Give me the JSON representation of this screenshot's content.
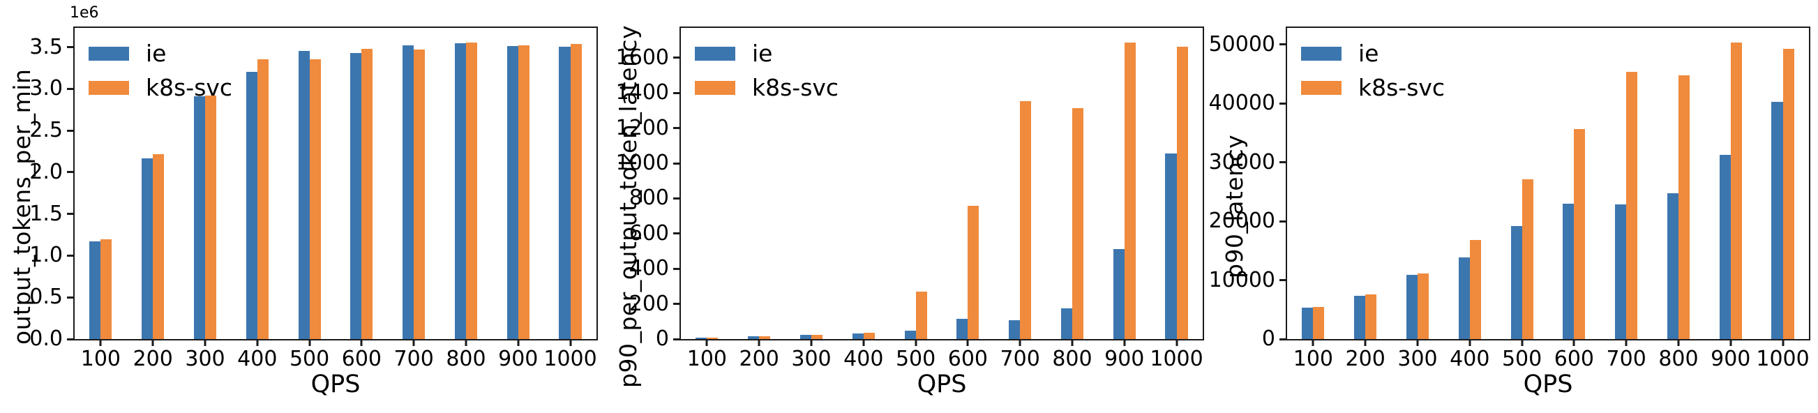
{
  "chart_data": [
    {
      "type": "bar",
      "title": "",
      "xlabel": "QPS",
      "ylabel": "output_tokens_per_min",
      "offset_text": "1e6",
      "categories": [
        "100",
        "200",
        "300",
        "400",
        "500",
        "600",
        "700",
        "800",
        "900",
        "1000"
      ],
      "series": [
        {
          "name": "ie",
          "color": "#3c76af",
          "values": [
            1170000,
            2170000,
            2910000,
            3200000,
            3450000,
            3430000,
            3520000,
            3545000,
            3510000,
            3505000
          ]
        },
        {
          "name": "k8s-svc",
          "color": "#f08a3c",
          "values": [
            1195000,
            2220000,
            2920000,
            3350000,
            3350000,
            3480000,
            3470000,
            3555000,
            3520000,
            3535000
          ]
        }
      ],
      "ylim": [
        0,
        3730000
      ],
      "yticks": [
        0,
        500000,
        1000000,
        1500000,
        2000000,
        2500000,
        3000000,
        3500000
      ],
      "ytick_labels": [
        "0.0",
        "0.5",
        "1.0",
        "1.5",
        "2.0",
        "2.5",
        "3.0",
        "3.5"
      ],
      "legend_position": "upper left",
      "grid": false
    },
    {
      "type": "bar",
      "title": "",
      "xlabel": "QPS",
      "ylabel": "p90_per_output_token_latency",
      "categories": [
        "100",
        "200",
        "300",
        "400",
        "500",
        "600",
        "700",
        "800",
        "900",
        "1000"
      ],
      "series": [
        {
          "name": "ie",
          "color": "#3c76af",
          "values": [
            8,
            15,
            22,
            32,
            48,
            115,
            107,
            175,
            513,
            1057
          ]
        },
        {
          "name": "k8s-svc",
          "color": "#f08a3c",
          "values": [
            9,
            16,
            24,
            37,
            268,
            760,
            1355,
            1312,
            1685,
            1662
          ]
        }
      ],
      "ylim": [
        0,
        1770
      ],
      "yticks": [
        0,
        200,
        400,
        600,
        800,
        1000,
        1200,
        1400,
        1600
      ],
      "ytick_labels": [
        "0",
        "200",
        "400",
        "600",
        "800",
        "1000",
        "1200",
        "1400",
        "1600"
      ],
      "legend_position": "upper left",
      "grid": false
    },
    {
      "type": "bar",
      "title": "",
      "xlabel": "QPS",
      "ylabel": "p90_latency",
      "categories": [
        "100",
        "200",
        "300",
        "400",
        "500",
        "600",
        "700",
        "800",
        "900",
        "1000"
      ],
      "series": [
        {
          "name": "ie",
          "color": "#3c76af",
          "values": [
            5300,
            7400,
            10900,
            13900,
            19200,
            23000,
            22800,
            24700,
            31300,
            40200
          ]
        },
        {
          "name": "k8s-svc",
          "color": "#f08a3c",
          "values": [
            5400,
            7600,
            11100,
            16800,
            27100,
            35600,
            45300,
            44800,
            50300,
            49300
          ]
        }
      ],
      "ylim": [
        0,
        52800
      ],
      "yticks": [
        0,
        10000,
        20000,
        30000,
        40000,
        50000
      ],
      "ytick_labels": [
        "0",
        "10000",
        "20000",
        "30000",
        "40000",
        "50000"
      ],
      "legend_position": "upper left",
      "grid": false
    }
  ]
}
